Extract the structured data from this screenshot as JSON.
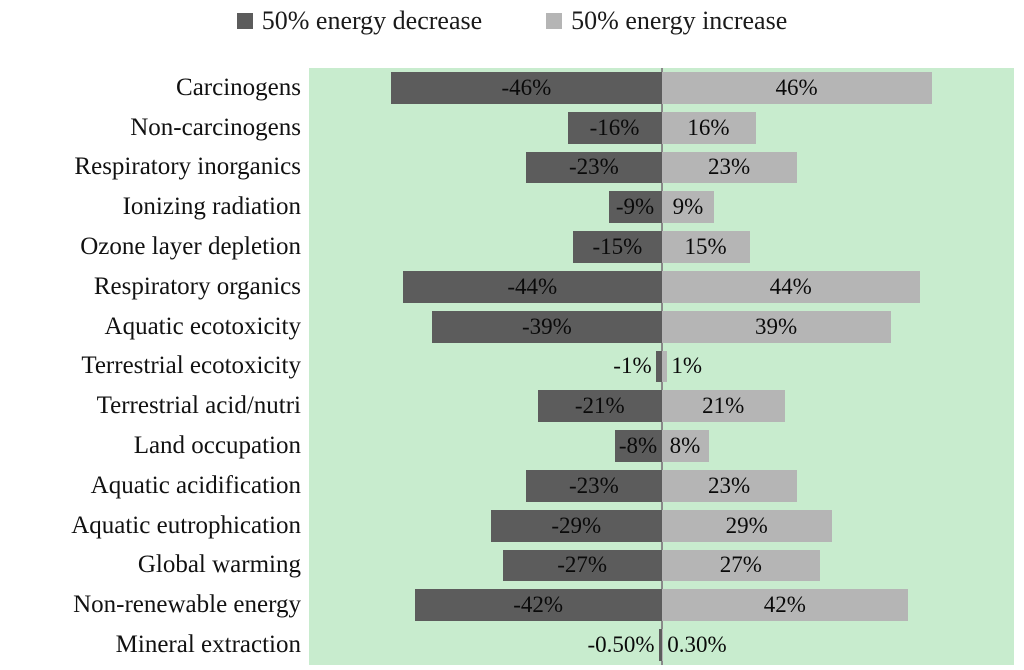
{
  "chart_data": {
    "type": "bar",
    "orientation": "horizontal",
    "title": "",
    "xlabel": "",
    "ylabel": "",
    "xlim": [
      -60,
      60
    ],
    "grid": false,
    "legend_position": "top",
    "plot_bg_color": "#c8ecce",
    "axis_line_color": "#8a8a8a",
    "categories": [
      "Carcinogens",
      "Non-carcinogens",
      "Respiratory inorganics",
      "Ionizing radiation",
      "Ozone layer depletion",
      "Respiratory organics",
      "Aquatic ecotoxicity",
      "Terrestrial ecotoxicity",
      "Terrestrial acid/nutri",
      "Land occupation",
      "Aquatic acidification",
      "Aquatic eutrophication",
      "Global warming",
      "Non-renewable energy",
      "Mineral extraction"
    ],
    "series": [
      {
        "name": "50% energy decrease",
        "color": "#5c5c5c",
        "values": [
          -46,
          -16,
          -23,
          -9,
          -15,
          -44,
          -39,
          -1,
          -21,
          -8,
          -23,
          -29,
          -27,
          -42,
          -0.5
        ],
        "labels": [
          "-46%",
          "-16%",
          "-23%",
          "-9%",
          "-15%",
          "-44%",
          "-39%",
          "-1%",
          "-21%",
          "-8%",
          "-23%",
          "-29%",
          "-27%",
          "-42%",
          "-0.50%"
        ]
      },
      {
        "name": "50% energy increase",
        "color": "#b5b5b5",
        "values": [
          46,
          16,
          23,
          9,
          15,
          44,
          39,
          1,
          21,
          8,
          23,
          29,
          27,
          42,
          0.3
        ],
        "labels": [
          "46%",
          "16%",
          "23%",
          "9%",
          "15%",
          "44%",
          "39%",
          "1%",
          "21%",
          "8%",
          "23%",
          "29%",
          "27%",
          "42%",
          "0.30%"
        ]
      }
    ]
  }
}
